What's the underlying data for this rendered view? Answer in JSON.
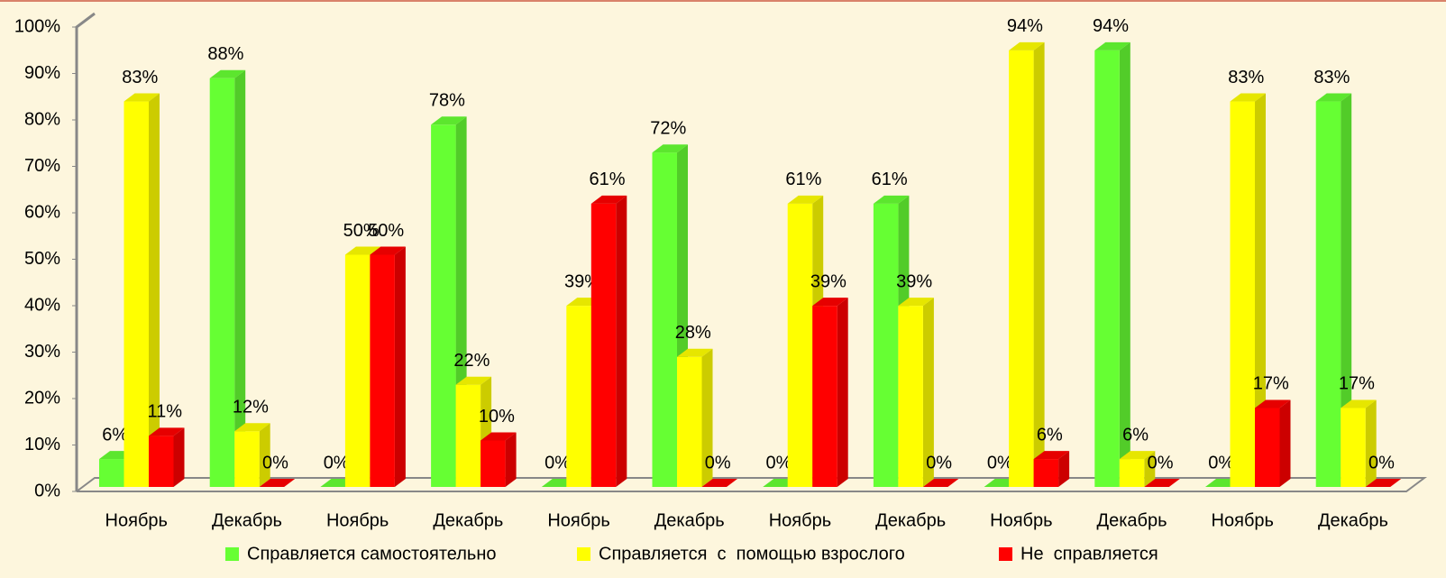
{
  "chart_data": {
    "type": "bar3d",
    "categories": [
      "Ноябрь",
      "Декабрь",
      "Ноябрь",
      "Декабрь",
      "Ноябрь",
      "Декабрь",
      "Ноябрь",
      "Декабрь",
      "Ноябрь",
      "Декабрь",
      "Ноябрь",
      "Декабрь"
    ],
    "series": [
      {
        "name": "Справляется самостоятельно",
        "color": "#66ff33",
        "values": [
          6,
          88,
          0,
          78,
          0,
          72,
          0,
          61,
          0,
          94,
          0,
          83
        ],
        "value_labels": [
          "6%",
          "88%",
          "0%",
          "78%",
          "0%",
          "72%",
          "0%",
          "61%",
          "0%",
          "94%",
          "0%",
          "83%"
        ]
      },
      {
        "name": "Справляется  с  помощью взрослого",
        "color": "#ffff00",
        "values": [
          83,
          12,
          50,
          22,
          39,
          28,
          61,
          39,
          94,
          6,
          83,
          17
        ],
        "value_labels": [
          "83%",
          "12%",
          "50%",
          "22%",
          "39%",
          "28%",
          "61%",
          "39%",
          "94%",
          "6%",
          "83%",
          "17%"
        ]
      },
      {
        "name": "Не  справляется",
        "color": "#ff0000",
        "values": [
          11,
          0,
          50,
          10,
          61,
          0,
          39,
          0,
          6,
          0,
          17,
          0
        ],
        "value_labels": [
          "11%",
          "0%",
          "50%",
          "10%",
          "61%",
          "0%",
          "39%",
          "0%",
          "6%",
          "0%",
          "17%",
          "0%"
        ]
      }
    ],
    "ylim": [
      0,
      100
    ],
    "yticks": [
      {
        "value": 0,
        "label": "0%"
      },
      {
        "value": 10,
        "label": "10%"
      },
      {
        "value": 20,
        "label": "20%"
      },
      {
        "value": 30,
        "label": "30%"
      },
      {
        "value": 40,
        "label": "40%"
      },
      {
        "value": 50,
        "label": "50%"
      },
      {
        "value": 60,
        "label": "60%"
      },
      {
        "value": 70,
        "label": "70%"
      },
      {
        "value": 80,
        "label": "80%"
      },
      {
        "value": 90,
        "label": "90%"
      },
      {
        "value": 100,
        "label": "100%"
      }
    ],
    "legend": "bottom"
  }
}
